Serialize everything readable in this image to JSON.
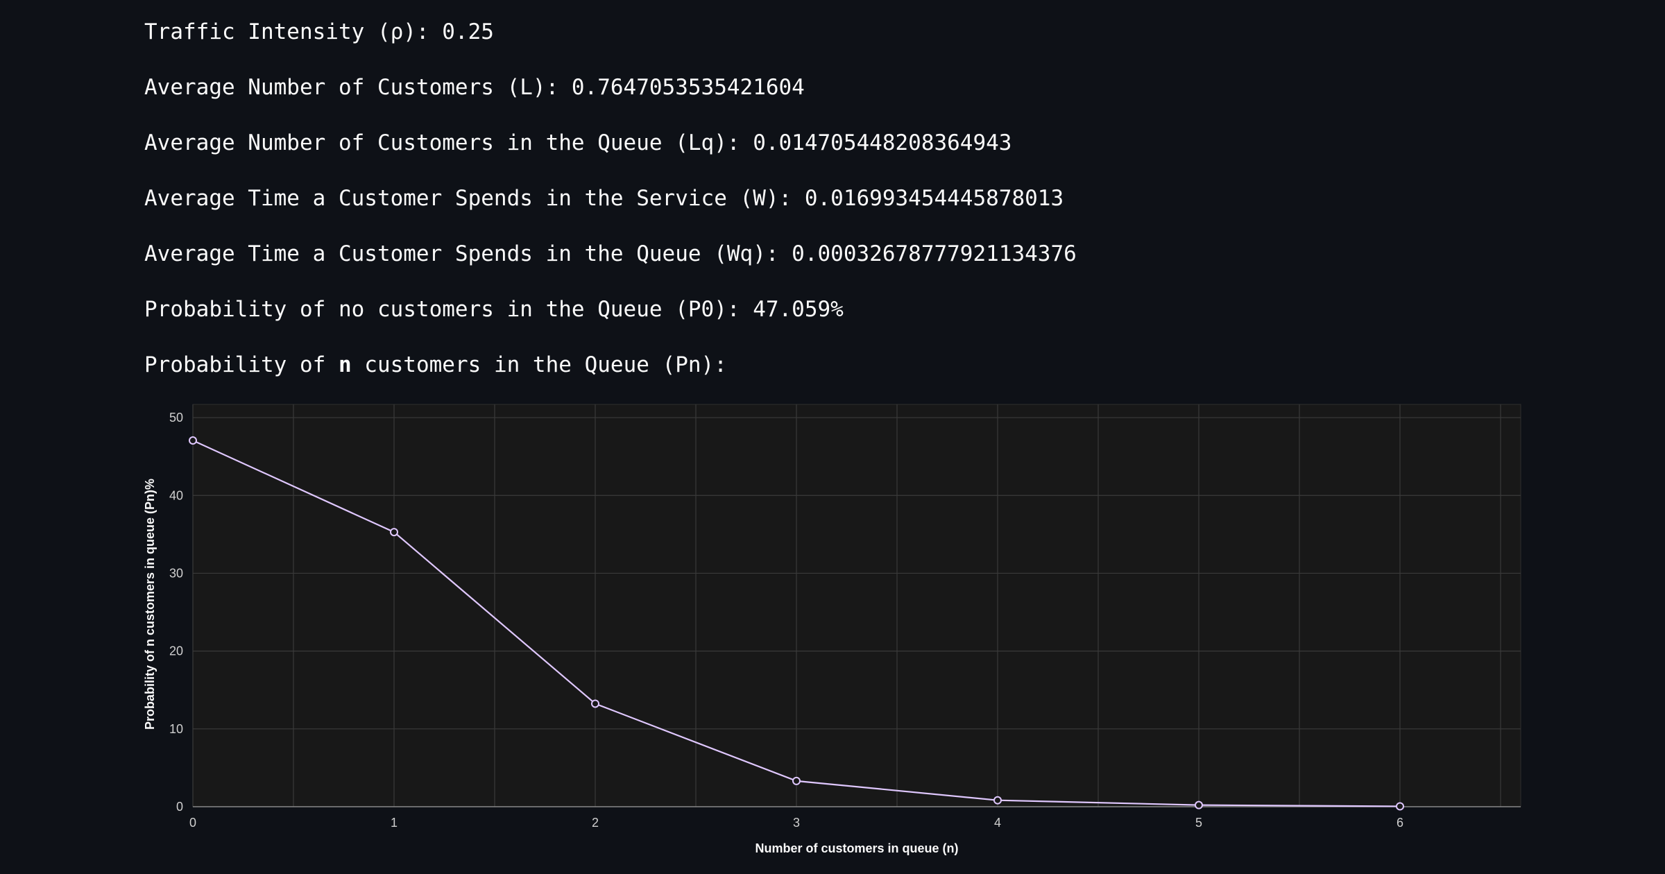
{
  "metrics": {
    "traffic_intensity": "Traffic Intensity (ρ): 0.25",
    "avg_customers": "Average Number of Customers (L): 0.7647053535421604",
    "avg_customers_queue": "Average Number of Customers in the Queue (Lq): 0.014705448208364943",
    "avg_time_service": "Average Time a Customer Spends in the Service (W): 0.016993454445878013",
    "avg_time_queue": "Average Time a Customer Spends in the Queue (Wq): 0.00032678777921134376",
    "prob_no_customers": "Probability of no customers in the Queue (P0): 47.059%",
    "prob_n_prefix": "Probability of ",
    "prob_n_bold": "n",
    "prob_n_suffix": " customers in the Queue (Pn):"
  },
  "chart_data": {
    "type": "line",
    "x": [
      0,
      1,
      2,
      3,
      4,
      5,
      6
    ],
    "series": [
      {
        "values": [
          47.06,
          35.29,
          13.24,
          3.31,
          0.83,
          0.21,
          0.05
        ]
      }
    ],
    "xlabel": "Number of customers in queue (n)",
    "ylabel": "Probability of n customers in queue (Pn)%",
    "xlim": [
      0,
      6.6
    ],
    "ylim": [
      0,
      51.7
    ],
    "xticks": [
      0,
      1,
      2,
      3,
      4,
      5,
      6
    ],
    "yticks": [
      0,
      10,
      20,
      30,
      40,
      50
    ],
    "grid": true,
    "line_color": "#e0c8ff"
  }
}
